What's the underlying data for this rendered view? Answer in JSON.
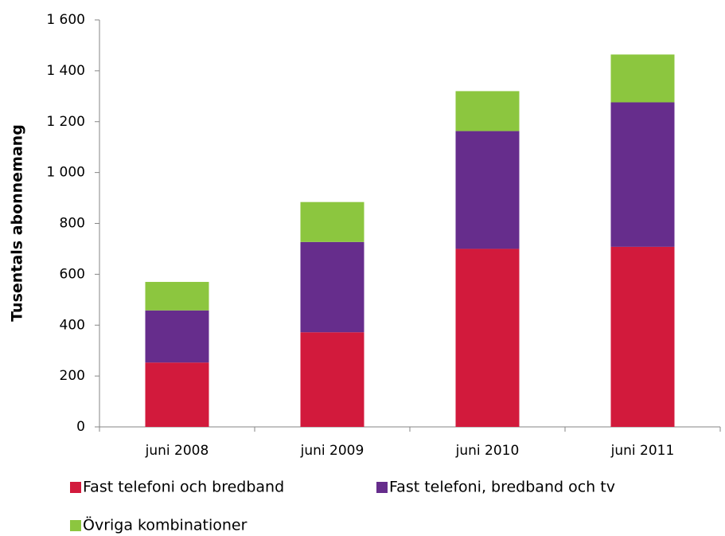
{
  "chart_data": {
    "type": "stacked-bar",
    "y_label": "Tusentals abonnemang",
    "categories": [
      "juni 2008",
      "juni 2009",
      "juni 2010",
      "juni 2011"
    ],
    "series": [
      {
        "name": "Fast telefoni och bredband",
        "color": "#d21a3c",
        "values": [
          253,
          372,
          700,
          708
        ]
      },
      {
        "name": "Fast telefoni, bredband och tv",
        "color": "#662d8c",
        "values": [
          205,
          355,
          463,
          568
        ]
      },
      {
        "name": "Övriga kombinationer",
        "color": "#8cc63f",
        "values": [
          112,
          157,
          157,
          188
        ]
      }
    ],
    "ylim": [
      0,
      1600
    ],
    "yticks": [
      0,
      200,
      400,
      600,
      800,
      {
        "value": 1000,
        "label": "1 000"
      },
      {
        "value": 1200,
        "label": "1 200"
      },
      {
        "value": 1400,
        "label": "1 400"
      },
      {
        "value": 1600,
        "label": "1 600"
      }
    ],
    "grid": false
  }
}
